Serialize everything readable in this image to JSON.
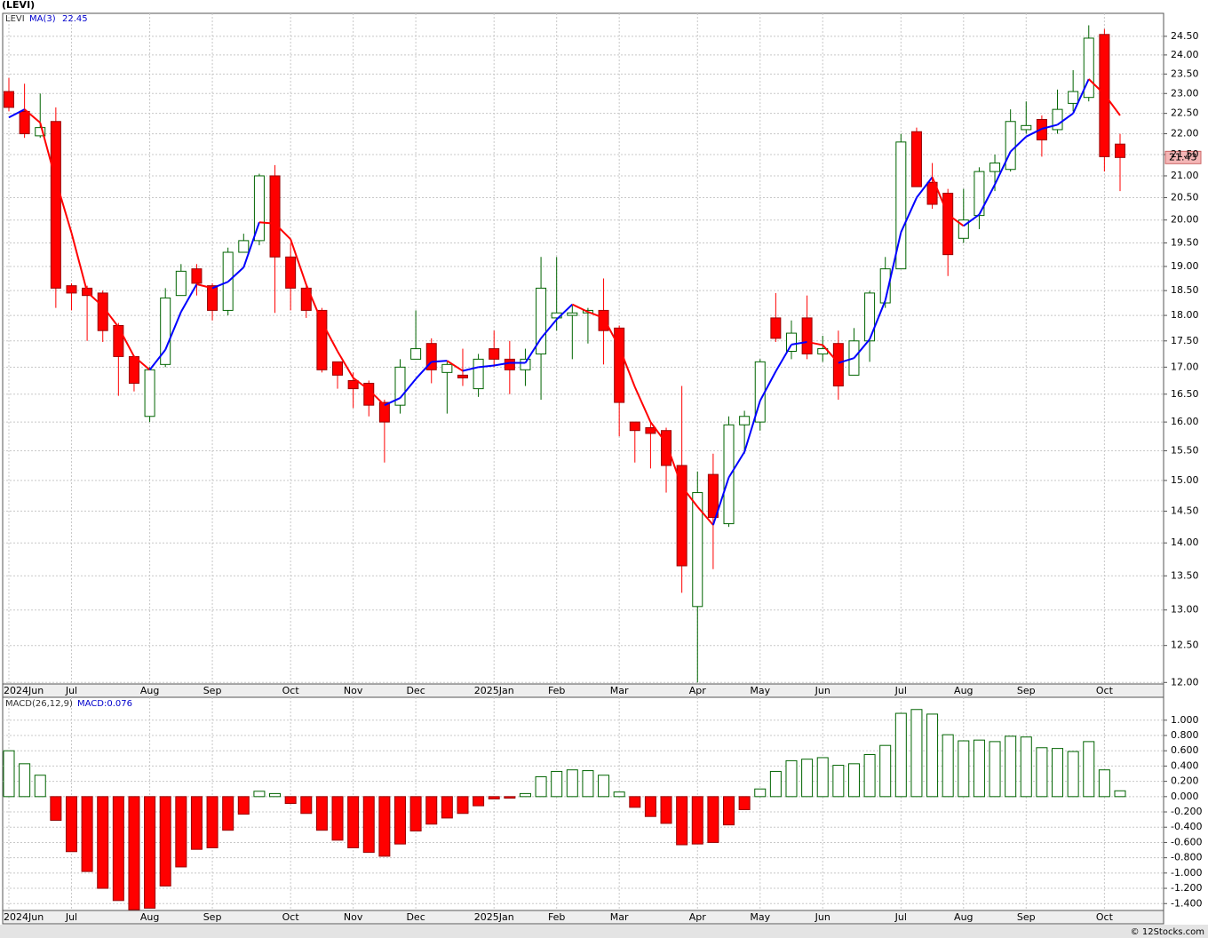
{
  "header": {
    "ticker": "(LEVI)"
  },
  "chart_data": [
    {
      "type": "candlestick",
      "legend": {
        "symbol": "LEVI",
        "ma_name": "MA(3)",
        "ma_value": "22.45"
      },
      "categories": [
        "2024Jun",
        null,
        null,
        null,
        "Jul",
        null,
        null,
        null,
        null,
        "Aug",
        null,
        null,
        null,
        "Sep",
        null,
        null,
        null,
        null,
        "Oct",
        null,
        null,
        null,
        "Nov",
        null,
        null,
        null,
        "Dec",
        null,
        null,
        null,
        null,
        "2025Jan",
        null,
        null,
        null,
        "Feb",
        null,
        null,
        null,
        "Mar",
        null,
        null,
        null,
        null,
        "Apr",
        null,
        null,
        null,
        "May",
        null,
        null,
        null,
        "Jun",
        null,
        null,
        null,
        null,
        "Jul",
        null,
        null,
        null,
        "Aug",
        null,
        null,
        null,
        "Sep",
        null,
        null,
        null,
        null,
        "Oct",
        null
      ],
      "open": [
        23.05,
        22.55,
        21.95,
        22.3,
        18.6,
        18.55,
        18.45,
        17.8,
        17.2,
        16.1,
        17.05,
        18.4,
        18.95,
        18.6,
        18.1,
        19.3,
        19.55,
        21.0,
        19.2,
        18.55,
        18.1,
        17.1,
        16.75,
        16.7,
        16.35,
        16.3,
        17.15,
        17.45,
        16.9,
        16.85,
        16.6,
        17.35,
        17.15,
        16.95,
        17.25,
        17.95,
        18.0,
        18.05,
        18.1,
        17.75,
        16.0,
        15.9,
        15.85,
        15.25,
        13.05,
        15.1,
        14.3,
        15.95,
        16.0,
        17.95,
        17.3,
        17.95,
        17.25,
        17.45,
        16.85,
        17.5,
        18.25,
        18.95,
        22.05,
        20.85,
        20.6,
        19.6,
        20.1,
        21.1,
        21.15,
        22.1,
        22.35,
        22.1,
        22.75,
        22.9,
        24.55,
        21.75
      ],
      "high": [
        23.4,
        23.25,
        23.0,
        22.65,
        18.65,
        18.6,
        18.5,
        17.85,
        17.2,
        17.0,
        18.55,
        19.05,
        19.05,
        18.65,
        19.4,
        19.7,
        21.05,
        21.25,
        19.5,
        18.65,
        18.15,
        17.1,
        16.9,
        16.75,
        16.4,
        17.15,
        18.1,
        17.55,
        17.1,
        17.35,
        17.25,
        17.7,
        17.5,
        17.35,
        19.2,
        19.2,
        18.2,
        18.15,
        18.75,
        17.8,
        16.0,
        16.0,
        15.9,
        16.65,
        15.15,
        15.45,
        16.1,
        16.2,
        17.15,
        18.45,
        17.9,
        18.4,
        17.6,
        17.7,
        17.75,
        18.5,
        19.2,
        22.0,
        22.15,
        21.3,
        20.7,
        20.7,
        21.2,
        21.5,
        22.6,
        22.8,
        22.45,
        23.1,
        23.6,
        24.8,
        24.7,
        22.0
      ],
      "low": [
        22.55,
        21.9,
        21.9,
        18.15,
        18.1,
        17.5,
        17.48,
        16.47,
        16.55,
        16.0,
        17.0,
        18.4,
        18.4,
        17.9,
        18.0,
        19.3,
        19.45,
        18.05,
        18.1,
        17.95,
        16.9,
        16.6,
        16.25,
        16.1,
        15.3,
        16.15,
        17.15,
        16.7,
        16.15,
        16.65,
        16.45,
        17.0,
        16.5,
        16.65,
        16.4,
        17.7,
        17.15,
        17.45,
        17.05,
        15.75,
        15.3,
        15.2,
        14.8,
        13.25,
        12.0,
        13.6,
        14.25,
        15.45,
        15.85,
        17.48,
        17.15,
        17.15,
        17.1,
        16.4,
        16.85,
        17.1,
        18.15,
        18.95,
        20.75,
        20.25,
        18.8,
        19.5,
        19.8,
        20.65,
        21.1,
        22.0,
        21.45,
        22.0,
        22.55,
        22.8,
        21.1,
        20.65
      ],
      "close": [
        22.65,
        22.0,
        22.15,
        18.55,
        18.45,
        18.4,
        17.7,
        17.2,
        16.7,
        16.95,
        18.35,
        18.9,
        18.65,
        18.1,
        19.3,
        19.55,
        21.0,
        19.2,
        18.55,
        18.1,
        16.95,
        16.85,
        16.6,
        16.3,
        16.0,
        17.0,
        17.35,
        16.95,
        17.05,
        16.8,
        17.15,
        17.15,
        16.95,
        17.15,
        18.55,
        18.05,
        18.05,
        18.1,
        17.7,
        16.35,
        15.85,
        15.8,
        15.25,
        13.65,
        14.8,
        14.4,
        15.95,
        16.1,
        17.1,
        17.55,
        17.65,
        17.25,
        17.35,
        16.65,
        17.5,
        18.45,
        18.95,
        21.8,
        20.75,
        20.35,
        19.25,
        20.0,
        21.1,
        21.3,
        22.3,
        22.2,
        21.85,
        22.6,
        23.05,
        24.45,
        21.45,
        21.43
      ],
      "up_color": "#006400",
      "down_color": "#ff0000",
      "ma": {
        "values": [
          22.4,
          22.6,
          22.27,
          20.9,
          19.72,
          18.47,
          18.18,
          17.77,
          17.2,
          16.95,
          17.33,
          18.07,
          18.63,
          18.55,
          18.68,
          18.98,
          19.95,
          19.92,
          19.58,
          18.62,
          17.87,
          17.3,
          16.8,
          16.58,
          16.3,
          16.43,
          16.78,
          17.1,
          17.12,
          16.93,
          17.0,
          17.03,
          17.08,
          17.08,
          17.55,
          17.92,
          18.22,
          18.07,
          17.95,
          17.38,
          16.63,
          16.0,
          15.63,
          14.9,
          14.57,
          14.28,
          15.05,
          15.48,
          16.38,
          16.92,
          17.43,
          17.48,
          17.42,
          17.08,
          17.17,
          17.53,
          18.3,
          19.73,
          20.5,
          20.97,
          20.12,
          19.87,
          20.12,
          20.8,
          21.57,
          21.93,
          22.12,
          22.22,
          22.5,
          23.37,
          22.98,
          22.45
        ],
        "up_color": "#0000ff",
        "down_color": "#ff0000"
      },
      "last_price_label": "21.43",
      "ylim": [
        11.98,
        25.13
      ],
      "log_scale": true,
      "grid": true,
      "yticks": [
        {
          "value": 12,
          "label": "12.00"
        },
        {
          "value": 12.5,
          "label": "12.50"
        },
        {
          "value": 13,
          "label": "13.00"
        },
        {
          "value": 13.5,
          "label": "13.50"
        },
        {
          "value": 14,
          "label": "14.00"
        },
        {
          "value": 14.5,
          "label": "14.50"
        },
        {
          "value": 15,
          "label": "15.00"
        },
        {
          "value": 15.5,
          "label": "15.50"
        },
        {
          "value": 16,
          "label": "16.00"
        },
        {
          "value": 16.5,
          "label": "16.50"
        },
        {
          "value": 17,
          "label": "17.00"
        },
        {
          "value": 17.5,
          "label": "17.50"
        },
        {
          "value": 18,
          "label": "18.00"
        },
        {
          "value": 18.5,
          "label": "18.50"
        },
        {
          "value": 19,
          "label": "19.00"
        },
        {
          "value": 19.5,
          "label": "19.50"
        },
        {
          "value": 20,
          "label": "20.00"
        },
        {
          "value": 20.5,
          "label": "20.50"
        },
        {
          "value": 21,
          "label": "21.00"
        },
        {
          "value": 21.5,
          "label": "21.50"
        },
        {
          "value": 22,
          "label": "22.00"
        },
        {
          "value": 22.5,
          "label": "22.50"
        },
        {
          "value": 23,
          "label": "23.00"
        },
        {
          "value": 23.5,
          "label": "23.50"
        },
        {
          "value": 24,
          "label": "24.00"
        },
        {
          "value": 24.5,
          "label": "24.50"
        }
      ]
    },
    {
      "type": "bar",
      "title": "MACD(26,12,9)",
      "value_label": "MACD:0.076",
      "categories": [
        "2024Jun",
        null,
        null,
        null,
        "Jul",
        null,
        null,
        null,
        null,
        "Aug",
        null,
        null,
        null,
        "Sep",
        null,
        null,
        null,
        null,
        "Oct",
        null,
        null,
        null,
        "Nov",
        null,
        null,
        null,
        "Dec",
        null,
        null,
        null,
        null,
        "2025Jan",
        null,
        null,
        null,
        "Feb",
        null,
        null,
        null,
        "Mar",
        null,
        null,
        null,
        null,
        "Apr",
        null,
        null,
        null,
        "May",
        null,
        null,
        null,
        "Jun",
        null,
        null,
        null,
        null,
        "Jul",
        null,
        null,
        null,
        "Aug",
        null,
        null,
        null,
        "Sep",
        null,
        null,
        null,
        null,
        "Oct",
        null
      ],
      "values": [
        0.6,
        0.43,
        0.28,
        -0.31,
        -0.72,
        -0.98,
        -1.2,
        -1.36,
        -1.48,
        -1.46,
        -1.17,
        -0.92,
        -0.69,
        -0.67,
        -0.44,
        -0.23,
        0.07,
        0.04,
        -0.09,
        -0.22,
        -0.44,
        -0.57,
        -0.67,
        -0.73,
        -0.78,
        -0.62,
        -0.45,
        -0.36,
        -0.28,
        -0.22,
        -0.12,
        -0.03,
        -0.02,
        0.04,
        0.26,
        0.33,
        0.35,
        0.34,
        0.28,
        0.06,
        -0.14,
        -0.26,
        -0.35,
        -0.63,
        -0.62,
        -0.6,
        -0.37,
        -0.17,
        0.1,
        0.33,
        0.47,
        0.49,
        0.51,
        0.41,
        0.43,
        0.55,
        0.67,
        1.09,
        1.14,
        1.08,
        0.81,
        0.73,
        0.74,
        0.72,
        0.79,
        0.78,
        0.64,
        0.63,
        0.59,
        0.72,
        0.35,
        0.076
      ],
      "up_color": "#006400",
      "down_color": "#ff0000",
      "ylim": [
        -1.49,
        1.3
      ],
      "grid": true,
      "yticks": [
        {
          "value": -1.4,
          "label": "-1.400"
        },
        {
          "value": -1.2,
          "label": "-1.200"
        },
        {
          "value": -1,
          "label": "-1.000"
        },
        {
          "value": -0.8,
          "label": "-0.800"
        },
        {
          "value": -0.6,
          "label": "-0.600"
        },
        {
          "value": -0.4,
          "label": "-0.400"
        },
        {
          "value": -0.2,
          "label": "-0.200"
        },
        {
          "value": 0,
          "label": "0.000"
        },
        {
          "value": 0.2,
          "label": "0.200"
        },
        {
          "value": 0.4,
          "label": "0.400"
        },
        {
          "value": 0.6,
          "label": "0.600"
        },
        {
          "value": 0.8,
          "label": "0.800"
        },
        {
          "value": 1,
          "label": "1.000"
        }
      ]
    }
  ],
  "footer": "© 12Stocks.com"
}
